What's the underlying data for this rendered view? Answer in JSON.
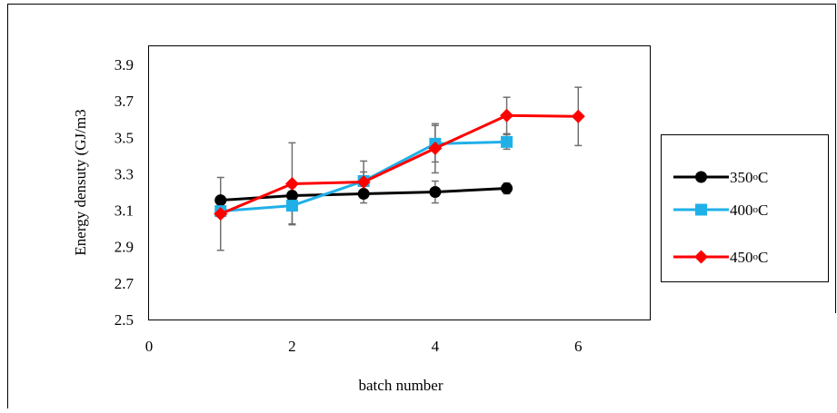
{
  "chart_data": {
    "type": "line",
    "title": "",
    "xlabel": "batch number",
    "ylabel": "Energy densuty (GJ/m3",
    "xlim": [
      0,
      7
    ],
    "ylim": [
      2.5,
      4.0
    ],
    "xticks": [
      0,
      2,
      4,
      6
    ],
    "xtick_labels": [
      "0",
      "2",
      "4",
      "6"
    ],
    "yticks": [
      2.5,
      2.7,
      2.9,
      3.1,
      3.3,
      3.5,
      3.7,
      3.9
    ],
    "ytick_labels": [
      "2.5",
      "2.7",
      "2.9",
      "3.1",
      "3.3",
      "3.5",
      "3.7",
      "3.9"
    ],
    "grid": false,
    "legend_position": "right",
    "series": [
      {
        "name": "350°C",
        "name_base": "350",
        "name_sup": "o",
        "name_unit": "C",
        "color": "#000000",
        "marker": "circle",
        "x": [
          1,
          2,
          3,
          4,
          5
        ],
        "y": [
          3.155,
          3.18,
          3.19,
          3.2,
          3.22
        ],
        "error": [
          0.02,
          0.02,
          0.02,
          0.06,
          0.03
        ]
      },
      {
        "name": "400°C",
        "name_base": "400",
        "name_sup": "o",
        "name_unit": "C",
        "color": "#1fb0e8",
        "marker": "square",
        "x": [
          1,
          2,
          3,
          4,
          5
        ],
        "y": [
          3.095,
          3.125,
          3.26,
          3.465,
          3.475
        ],
        "error": [
          0.03,
          0.1,
          0.05,
          0.1,
          0.04
        ]
      },
      {
        "name": "450°C",
        "name_base": "450",
        "name_sup": "o",
        "name_unit": "C",
        "color": "#ff0000",
        "marker": "diamond",
        "x": [
          1,
          2,
          3,
          4,
          5,
          6
        ],
        "y": [
          3.08,
          3.245,
          3.255,
          3.44,
          3.62,
          3.615
        ],
        "error": [
          0.2,
          0.225,
          0.115,
          0.135,
          0.1,
          0.16
        ]
      }
    ]
  }
}
